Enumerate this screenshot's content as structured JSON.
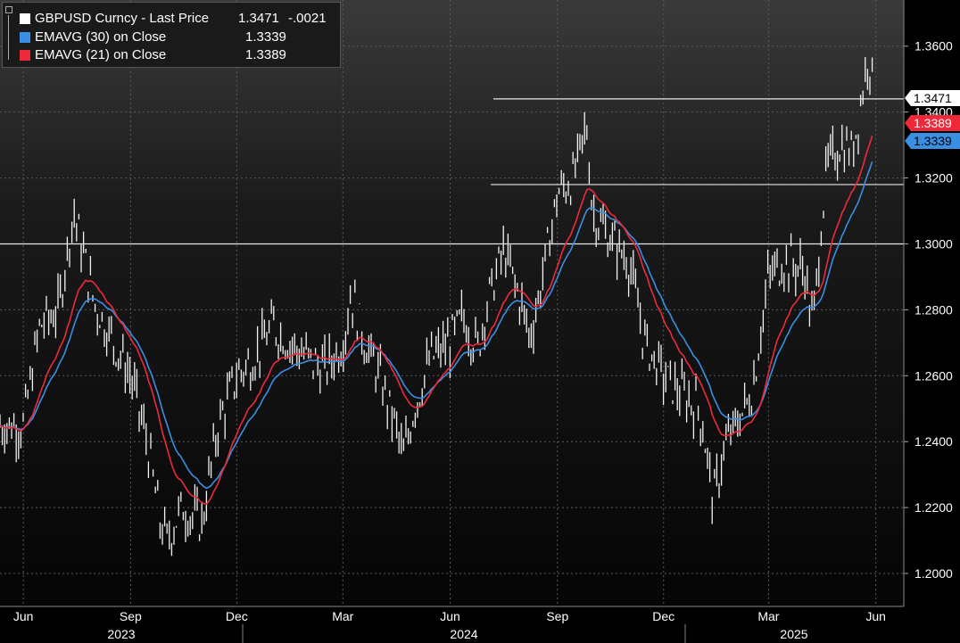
{
  "chart_data": {
    "type": "line",
    "title": "GBPUSD Curncy",
    "ylim": [
      1.19,
      1.374
    ],
    "grid": true,
    "y_ticks": [
      "1.2000",
      "1.2200",
      "1.2400",
      "1.2600",
      "1.2800",
      "1.3000",
      "1.3200",
      "1.3400",
      "1.3600"
    ],
    "y_tick_values": [
      1.2,
      1.22,
      1.24,
      1.26,
      1.28,
      1.3,
      1.32,
      1.34,
      1.36
    ],
    "x_month_labels": [
      "Jun",
      "Sep",
      "Dec",
      "Mar",
      "Jun",
      "Sep",
      "Dec",
      "Mar",
      "Jun"
    ],
    "x_year_labels": [
      "2023",
      "2024",
      "2025"
    ],
    "horizontal_levels": [
      1.3,
      1.318,
      1.344
    ],
    "series": [
      {
        "name": "GBPUSD Curncy - Last Price",
        "color": "#ffffff",
        "x": [
          "2023-06-01",
          "2023-06-15",
          "2023-07-01",
          "2023-07-14",
          "2023-08-01",
          "2023-08-15",
          "2023-09-01",
          "2023-09-15",
          "2023-09-26",
          "2023-10-02",
          "2023-10-15",
          "2023-11-01",
          "2023-11-15",
          "2023-12-01",
          "2023-12-15",
          "2024-01-01",
          "2024-01-15",
          "2024-02-01",
          "2024-02-15",
          "2024-03-01",
          "2024-03-08",
          "2024-03-20",
          "2024-04-01",
          "2024-04-15",
          "2024-04-22",
          "2024-05-01",
          "2024-05-15",
          "2024-06-01",
          "2024-06-12",
          "2024-06-25",
          "2024-07-01",
          "2024-07-17",
          "2024-08-01",
          "2024-08-08",
          "2024-08-15",
          "2024-09-01",
          "2024-09-15",
          "2024-09-26",
          "2024-10-01",
          "2024-10-15",
          "2024-11-01",
          "2024-11-15",
          "2024-12-01",
          "2024-12-15",
          "2025-01-01",
          "2025-01-13",
          "2025-01-22",
          "2025-02-01",
          "2025-02-15",
          "2025-03-01",
          "2025-03-15",
          "2025-04-01",
          "2025-04-08",
          "2025-04-15",
          "2025-04-20",
          "2025-05-01",
          "2025-05-12",
          "2025-05-20",
          "2025-05-26",
          "2025-05-30"
        ],
        "values": [
          1.245,
          1.275,
          1.28,
          1.31,
          1.282,
          1.272,
          1.26,
          1.24,
          1.216,
          1.21,
          1.22,
          1.215,
          1.245,
          1.26,
          1.265,
          1.275,
          1.27,
          1.265,
          1.262,
          1.27,
          1.285,
          1.27,
          1.26,
          1.245,
          1.235,
          1.25,
          1.265,
          1.27,
          1.278,
          1.268,
          1.28,
          1.298,
          1.282,
          1.272,
          1.282,
          1.315,
          1.32,
          1.336,
          1.31,
          1.302,
          1.295,
          1.27,
          1.26,
          1.255,
          1.25,
          1.222,
          1.238,
          1.245,
          1.255,
          1.29,
          1.295,
          1.292,
          1.275,
          1.305,
          1.323,
          1.33,
          1.328,
          1.345,
          1.358,
          1.347
        ]
      },
      {
        "name": "EMAVG (30) on Close",
        "color": "#3a8fe3"
      },
      {
        "name": "EMAVG (21) on Close",
        "color": "#ee2a3a"
      }
    ],
    "last_price_label": "1.3471",
    "ema21_label": "1.3389",
    "ema30_label": "1.3339"
  },
  "legend": {
    "rows": [
      {
        "name": "GBPUSD Curncy - Last Price",
        "value": "1.3471",
        "change": "-.0021",
        "color": "#ffffff"
      },
      {
        "name": "EMAVG (30)  on Close",
        "value": "1.3339",
        "change": "",
        "color": "#3a8fe3"
      },
      {
        "name": "EMAVG (21)  on Close",
        "value": "1.3389",
        "change": "",
        "color": "#ee2a3a"
      }
    ]
  }
}
